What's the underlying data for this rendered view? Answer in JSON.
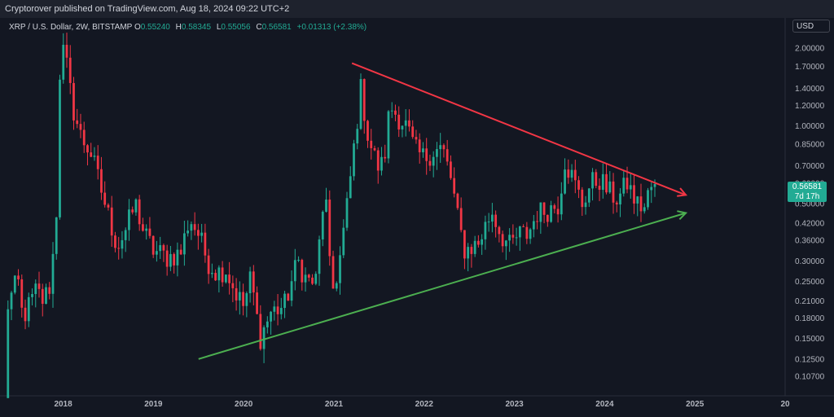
{
  "header": {
    "publisher_text": "Cryptorover published on TradingView.com, Aug 18, 2024 09:22 UTC+2"
  },
  "legend": {
    "symbol": "XRP / U.S. Dollar, 2W, BITSTAMP",
    "open_label": "O",
    "open": "0.55240",
    "high_label": "H",
    "high": "0.58345",
    "low_label": "L",
    "low": "0.55056",
    "close_label": "C",
    "close": "0.56581",
    "change": "+0.01313 (+2.38%)"
  },
  "currency_button": "USD",
  "price_tag": {
    "price": "0.56581",
    "countdown": "7d 17h"
  },
  "colors": {
    "up": "#22ab94",
    "down": "#f23645",
    "background": "#131722",
    "resistance_line": "#f23645",
    "support_line": "#4caf50"
  },
  "chart_data": {
    "type": "candlestick",
    "y_scale": "log",
    "ylim": [
      0.09,
      2.3
    ],
    "xlim": [
      2017.3,
      2026.0
    ],
    "y_ticks": [
      "2.00000",
      "1.70000",
      "1.40000",
      "1.20000",
      "1.00000",
      "0.85000",
      "0.70000",
      "0.60000",
      "0.50000",
      "0.42000",
      "0.36000",
      "0.30000",
      "0.25000",
      "0.21000",
      "0.18000",
      "0.15000",
      "0.12500",
      "0.10700"
    ],
    "x_ticks": [
      "2018",
      "2019",
      "2020",
      "2021",
      "2022",
      "2023",
      "2024",
      "2025",
      "20"
    ],
    "trendlines": [
      {
        "name": "resistance",
        "start": [
          2021.2,
          1.75
        ],
        "end": [
          2024.9,
          0.54
        ]
      },
      {
        "name": "support",
        "start": [
          2019.5,
          0.125
        ],
        "end": [
          2024.9,
          0.46
        ]
      }
    ],
    "anchors": [
      [
        2017.35,
        0.006
      ],
      [
        2017.38,
        0.2
      ],
      [
        2017.45,
        0.23
      ],
      [
        2017.5,
        0.25
      ],
      [
        2017.55,
        0.18
      ],
      [
        2017.62,
        0.2
      ],
      [
        2017.7,
        0.23
      ],
      [
        2017.78,
        0.21
      ],
      [
        2017.85,
        0.24
      ],
      [
        2017.92,
        0.4
      ],
      [
        2017.97,
        2.0
      ],
      [
        2018.02,
        1.9
      ],
      [
        2018.1,
        1.2
      ],
      [
        2018.2,
        0.9
      ],
      [
        2018.3,
        0.8
      ],
      [
        2018.4,
        0.6
      ],
      [
        2018.5,
        0.45
      ],
      [
        2018.6,
        0.34
      ],
      [
        2018.7,
        0.4
      ],
      [
        2018.8,
        0.5
      ],
      [
        2018.9,
        0.38
      ],
      [
        2019.0,
        0.33
      ],
      [
        2019.15,
        0.31
      ],
      [
        2019.3,
        0.32
      ],
      [
        2019.4,
        0.44
      ],
      [
        2019.5,
        0.38
      ],
      [
        2019.6,
        0.3
      ],
      [
        2019.7,
        0.27
      ],
      [
        2019.8,
        0.28
      ],
      [
        2019.9,
        0.23
      ],
      [
        2020.0,
        0.2
      ],
      [
        2020.08,
        0.26
      ],
      [
        2020.18,
        0.15
      ],
      [
        2020.3,
        0.19
      ],
      [
        2020.45,
        0.2
      ],
      [
        2020.6,
        0.3
      ],
      [
        2020.7,
        0.25
      ],
      [
        2020.8,
        0.25
      ],
      [
        2020.9,
        0.6
      ],
      [
        2020.97,
        0.22
      ],
      [
        2021.05,
        0.28
      ],
      [
        2021.15,
        0.5
      ],
      [
        2021.25,
        1.0
      ],
      [
        2021.3,
        1.4
      ],
      [
        2021.38,
        0.9
      ],
      [
        2021.48,
        0.7
      ],
      [
        2021.55,
        0.7
      ],
      [
        2021.62,
        1.2
      ],
      [
        2021.7,
        1.1
      ],
      [
        2021.8,
        1.0
      ],
      [
        2021.9,
        0.8
      ],
      [
        2022.0,
        0.75
      ],
      [
        2022.1,
        0.8
      ],
      [
        2022.2,
        0.82
      ],
      [
        2022.3,
        0.62
      ],
      [
        2022.38,
        0.42
      ],
      [
        2022.45,
        0.33
      ],
      [
        2022.6,
        0.35
      ],
      [
        2022.75,
        0.47
      ],
      [
        2022.85,
        0.38
      ],
      [
        2022.95,
        0.34
      ],
      [
        2023.05,
        0.38
      ],
      [
        2023.15,
        0.38
      ],
      [
        2023.25,
        0.46
      ],
      [
        2023.35,
        0.47
      ],
      [
        2023.5,
        0.5
      ],
      [
        2023.55,
        0.75
      ],
      [
        2023.65,
        0.62
      ],
      [
        2023.75,
        0.5
      ],
      [
        2023.85,
        0.6
      ],
      [
        2023.95,
        0.62
      ],
      [
        2024.05,
        0.55
      ],
      [
        2024.15,
        0.52
      ],
      [
        2024.25,
        0.6
      ],
      [
        2024.35,
        0.5
      ],
      [
        2024.45,
        0.48
      ],
      [
        2024.5,
        0.58
      ],
      [
        2024.58,
        0.566
      ]
    ]
  }
}
